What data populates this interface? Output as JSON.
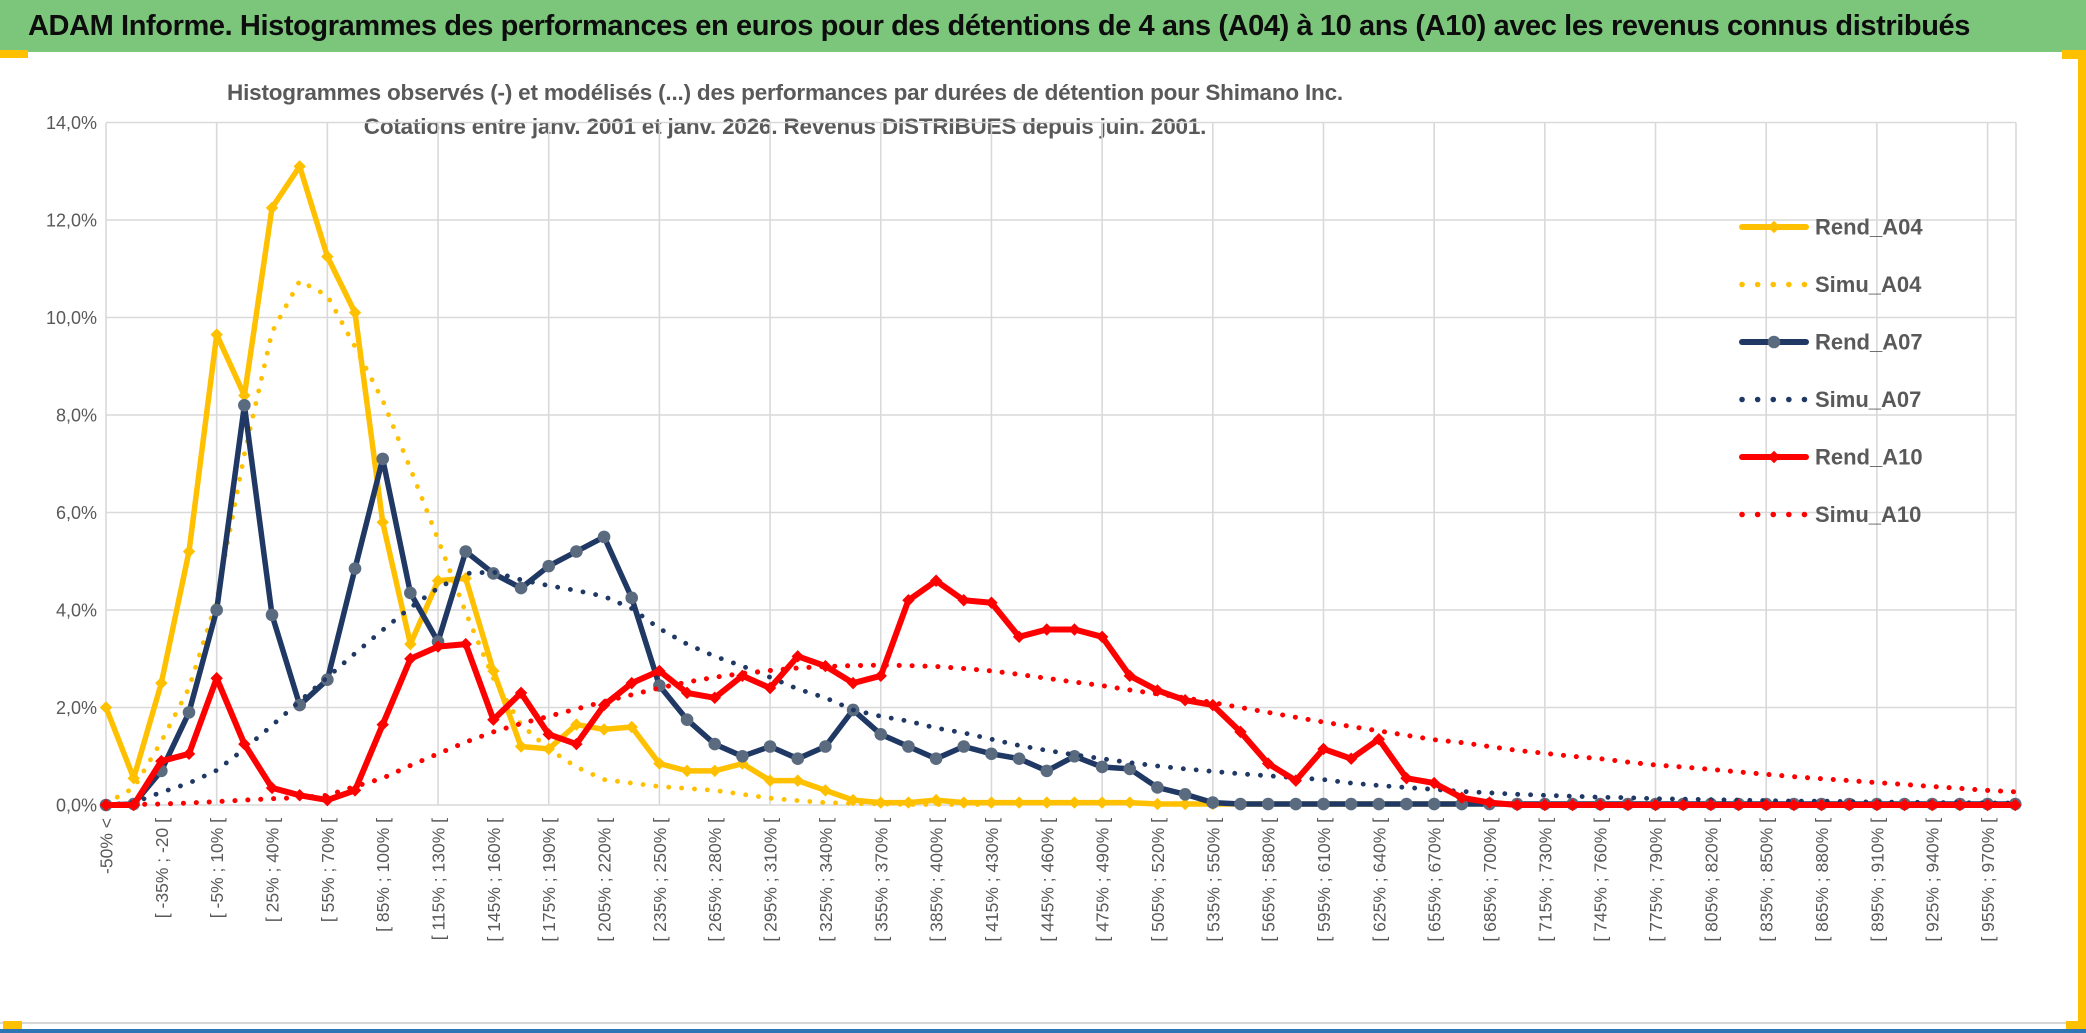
{
  "header": {
    "title": "ADAM Informe. Histogrammes des performances en euros pour des détentions de 4 ans (A04) à 10 ans (A10) avec les revenus connus distribués",
    "bg_color": "#7CC67C"
  },
  "chart": {
    "title_line1": "Histogrammes observés (-) et modélisés (...) des performances par durées de détention pour Shimano Inc.",
    "title_line2": "Cotations entre janv. 2001 et janv. 2026. Revenus DISTRIBUES depuis juin. 2001.",
    "text_color": "#595959",
    "grid_color": "#D9D9D9"
  },
  "chart_data": {
    "type": "line",
    "title": "Histogrammes observés (-) et modélisés (...) des performances par durées de détention pour Shimano Inc.",
    "subtitle": "Cotations entre janv. 2001 et janv. 2026. Revenus DISTRIBUES depuis juin. 2001.",
    "ylim": [
      0,
      14
    ],
    "y_tick_step": 2,
    "y_tick_labels": [
      "0,0%",
      "2,0%",
      "4,0%",
      "6,0%",
      "8,0%",
      "10,0%",
      "12,0%",
      "14,0%"
    ],
    "y_format": "percent_french",
    "bin_count": 70,
    "x_labels_every": 2,
    "x_tick_labels": [
      "-50% <",
      "[ -35% ; -20 [",
      "[ -5% ; 10% [",
      "[ 25% ; 40% [",
      "[ 55% ; 70% [",
      "[ 85% ; 100% [",
      "[ 115% ; 130% [",
      "[ 145% ; 160% [",
      "[ 175% ; 190% [",
      "[ 205% ; 220% [",
      "[ 235% ; 250% [",
      "[ 265% ; 280% [",
      "[ 295% ; 310% [",
      "[ 325% ; 340% [",
      "[ 355% ; 370% [",
      "[ 385% ; 400% [",
      "[ 415% ; 430% [",
      "[ 445% ; 460% [",
      "[ 475% ; 490% [",
      "[ 505% ; 520% [",
      "[ 535% ; 550% [",
      "[ 565% ; 580% [",
      "[ 595% ; 610% [",
      "[ 625% ; 640% [",
      "[ 655% ; 670% [",
      "[ 685% ; 700% [",
      "[ 715% ; 730% [",
      "[ 745% ; 760% [",
      "[ 775% ; 790% [",
      "[ 805% ; 820% [",
      "[ 835% ; 850% [",
      "[ 865% ; 880% [",
      "[ 895% ; 910% [",
      "[ 925% ; 940% [",
      "[ 955% ; 970% ["
    ],
    "legend_position": "right-inside",
    "grid": true,
    "series": [
      {
        "name": "Rend_A04",
        "color": "#FFC000",
        "style": "solid",
        "marker": "diamond",
        "width": 5.5,
        "values": [
          2.0,
          0.55,
          2.5,
          5.2,
          9.65,
          8.4,
          12.25,
          13.1,
          11.25,
          10.1,
          5.8,
          3.3,
          4.6,
          4.65,
          2.75,
          1.2,
          1.15,
          1.65,
          1.55,
          1.6,
          0.85,
          0.7,
          0.7,
          0.85,
          0.5,
          0.5,
          0.3,
          0.1,
          0.05,
          0.05,
          0.1,
          0.05,
          0.05,
          0.05,
          0.05,
          0.05,
          0.05,
          0.05,
          0.02,
          0.02,
          0.02,
          0.02,
          0.02,
          0.02,
          0.02,
          0.02,
          0.02,
          0.02,
          0.02,
          0.02,
          null,
          null,
          null,
          null,
          null,
          null,
          null,
          null,
          null,
          null,
          null,
          null,
          null,
          null,
          null,
          null,
          null,
          null,
          null,
          null
        ]
      },
      {
        "name": "Simu_A04",
        "color": "#FFC000",
        "style": "dotted",
        "marker": null,
        "width": 4.8,
        "values": [
          0.03,
          0.35,
          1.3,
          2.4,
          4.2,
          7.2,
          9.7,
          10.75,
          10.45,
          9.4,
          8.3,
          6.9,
          5.45,
          3.95,
          2.6,
          1.65,
          1.15,
          0.78,
          0.52,
          0.45,
          0.38,
          0.34,
          0.3,
          0.22,
          0.14,
          0.09,
          0.05,
          0.03,
          0.02,
          0.01,
          0.01,
          0.01,
          0.01,
          null,
          null,
          null,
          null,
          null,
          null,
          null,
          null,
          null,
          null,
          null,
          null,
          null,
          null,
          null,
          null,
          null,
          null,
          null,
          null,
          null,
          null,
          null,
          null,
          null,
          null,
          null,
          null,
          null,
          null,
          null,
          null,
          null,
          null,
          null,
          null,
          null
        ]
      },
      {
        "name": "Rend_A07",
        "color": "#1F3864",
        "style": "solid",
        "marker": "circle",
        "marker_fill": "#5B6B7F",
        "width": 5.5,
        "values": [
          0,
          0.02,
          0.7,
          1.9,
          4.0,
          8.2,
          3.9,
          2.05,
          2.57,
          4.85,
          7.1,
          4.35,
          3.35,
          5.2,
          4.75,
          4.45,
          4.9,
          5.2,
          5.5,
          4.25,
          2.45,
          1.75,
          1.25,
          1.0,
          1.2,
          0.95,
          1.2,
          1.95,
          1.45,
          1.2,
          0.95,
          1.2,
          1.05,
          0.95,
          0.7,
          1.0,
          0.78,
          0.74,
          0.36,
          0.22,
          0.05,
          0.02,
          0.02,
          0.02,
          0.02,
          0.02,
          0.02,
          0.02,
          0.02,
          0.02,
          0.02,
          0.02,
          0.02,
          0.02,
          0.02,
          0.02,
          0.02,
          0.02,
          0.02,
          0.02,
          0.02,
          0.02,
          0.02,
          0.02,
          0.02,
          0.02,
          0.02,
          0.02,
          0.02,
          0.02
        ]
      },
      {
        "name": "Simu_A07",
        "color": "#1F3864",
        "style": "dotted",
        "marker": null,
        "width": 4.8,
        "values": [
          0,
          0.05,
          0.26,
          0.45,
          0.71,
          1.15,
          1.63,
          2.13,
          2.62,
          3.11,
          3.59,
          4.05,
          4.45,
          4.75,
          4.78,
          4.62,
          4.5,
          4.4,
          4.28,
          4.03,
          3.62,
          3.3,
          3.05,
          2.85,
          2.62,
          2.38,
          2.2,
          1.95,
          1.82,
          1.72,
          1.58,
          1.48,
          1.35,
          1.22,
          1.12,
          1.03,
          0.95,
          0.87,
          0.8,
          0.74,
          0.69,
          0.64,
          0.6,
          0.56,
          0.52,
          0.45,
          0.4,
          0.36,
          0.32,
          0.28,
          0.25,
          0.22,
          0.2,
          0.18,
          0.16,
          0.15,
          0.13,
          0.12,
          0.11,
          0.1,
          0.09,
          0.08,
          0.08,
          0.07,
          0.06,
          0.06,
          0.05,
          0.05,
          0.04,
          0.04
        ]
      },
      {
        "name": "Rend_A10",
        "color": "#FF0000",
        "style": "solid",
        "marker": "diamond",
        "width": 6,
        "values": [
          0,
          0,
          0.9,
          1.05,
          2.6,
          1.25,
          0.35,
          0.2,
          0.1,
          0.3,
          1.65,
          3.0,
          3.25,
          3.3,
          1.75,
          2.3,
          1.45,
          1.25,
          2.05,
          2.5,
          2.75,
          2.3,
          2.2,
          2.65,
          2.4,
          3.05,
          2.85,
          2.5,
          2.65,
          4.2,
          4.6,
          4.2,
          4.15,
          3.45,
          3.6,
          3.6,
          3.45,
          2.65,
          2.35,
          2.15,
          2.05,
          1.5,
          0.85,
          0.5,
          1.15,
          0.95,
          1.35,
          0.55,
          0.45,
          0.15,
          0.05,
          0,
          0,
          0,
          0,
          0,
          0,
          0,
          0,
          0,
          0,
          0,
          0,
          0,
          0,
          0,
          0,
          0,
          0,
          0
        ]
      },
      {
        "name": "Simu_A10",
        "color": "#FF0000",
        "style": "dotted",
        "marker": null,
        "width": 5,
        "values": [
          0,
          0.01,
          0.02,
          0.04,
          0.07,
          0.1,
          0.13,
          0.15,
          0.2,
          0.38,
          0.55,
          0.81,
          1.05,
          1.29,
          1.5,
          1.67,
          1.82,
          1.97,
          2.12,
          2.26,
          2.4,
          2.52,
          2.62,
          2.7,
          2.76,
          2.81,
          2.84,
          2.86,
          2.87,
          2.86,
          2.84,
          2.8,
          2.75,
          2.68,
          2.6,
          2.52,
          2.45,
          2.36,
          2.28,
          2.2,
          2.1,
          2.0,
          1.9,
          1.8,
          1.7,
          1.61,
          1.52,
          1.43,
          1.34,
          1.28,
          1.2,
          1.12,
          1.06,
          1.0,
          0.95,
          0.88,
          0.82,
          0.78,
          0.73,
          0.68,
          0.63,
          0.58,
          0.54,
          0.5,
          0.46,
          0.42,
          0.38,
          0.34,
          0.3,
          0.27
        ]
      }
    ]
  },
  "frame": {
    "gold_color": "#FFC000",
    "bottom_rule_color": "#D6D6D6",
    "bottom_edge_color": "#2E75B6"
  }
}
